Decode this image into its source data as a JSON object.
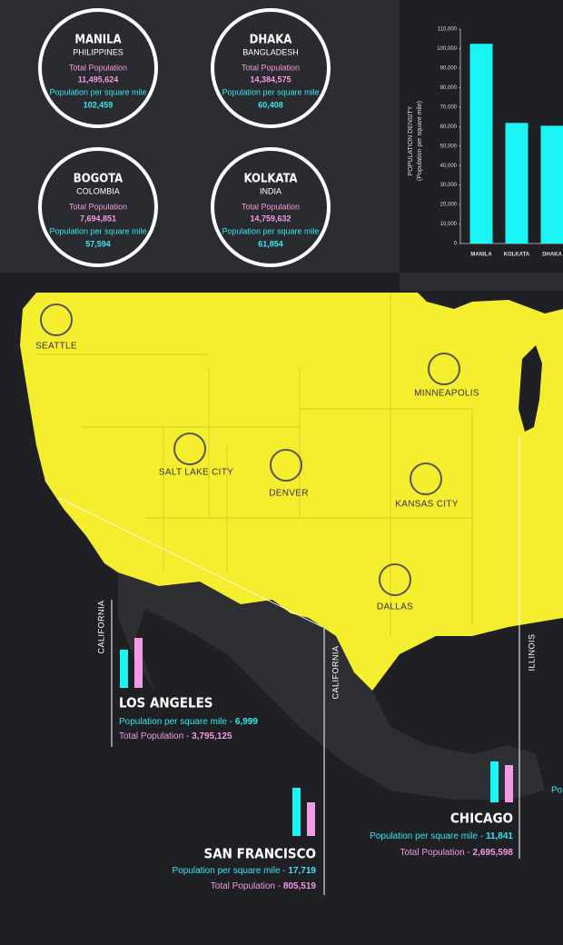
{
  "circles": [
    {
      "city": "MANILA",
      "country": "PHILIPPINES",
      "pop_label": "Total Population",
      "pop": "11,495,624",
      "density_label": "Population per square mile",
      "density": "102,459"
    },
    {
      "city": "DHAKA",
      "country": "BANGLADESH",
      "pop_label": "Total Population",
      "pop": "14,384,575",
      "density_label": "Population per square mile",
      "density": "60,408"
    },
    {
      "city": "BOGOTA",
      "country": "COLOMBIA",
      "pop_label": "Total Population",
      "pop": "7,694,851",
      "density_label": "Population per square mile",
      "density": "57,594"
    },
    {
      "city": "KOLKATA",
      "country": "INDIA",
      "pop_label": "Total Population",
      "pop": "14,759,632",
      "density_label": "Population per square mile",
      "density": "61,854"
    }
  ],
  "chart_data": {
    "type": "bar",
    "y_label": "POPULATION DENSITY",
    "y_sublabel": "(Population per square mile)",
    "categories": [
      "MANILA",
      "KOLKATA",
      "DHAKA"
    ],
    "values": [
      102459,
      61854,
      60408
    ],
    "color": "#19f5f5",
    "ylim": [
      0,
      110000
    ],
    "yticks": [
      0,
      {
        "value": 10000,
        "label": "10,000"
      },
      {
        "value": 20000,
        "label": "20,000"
      },
      {
        "value": 30000,
        "label": "30,000"
      },
      {
        "value": 40000,
        "label": "40,000"
      },
      {
        "value": 50000,
        "label": "50,000"
      },
      {
        "value": 60000,
        "label": "60,000"
      },
      {
        "value": 70000,
        "label": "70,000"
      },
      {
        "value": 80000,
        "label": "80,000"
      },
      {
        "value": 90000,
        "label": "90,000"
      },
      {
        "value": 100000,
        "label": "100,000"
      },
      {
        "value": 110000,
        "label": "110,000"
      }
    ]
  },
  "map_labels": [
    "SEATTLE",
    "MINNEAPOLIS",
    "SALT LAKE CITY",
    "DENVER",
    "KANSAS CITY",
    "DALLAS"
  ],
  "callouts": [
    {
      "state": "CALIFORNIA",
      "city": "LOS ANGELES",
      "density_label": "Population per square mile - ",
      "density": "6,999",
      "pop_label": "Total Population - ",
      "pop": "3,795,125"
    },
    {
      "state": "CALIFORNIA",
      "city": "SAN FRANCISCO",
      "density_label": "Population per square mile - ",
      "density": "17,719",
      "pop_label": "Total Population - ",
      "pop": "805,519"
    },
    {
      "state": "ILLINOIS",
      "city": "CHICAGO",
      "density_label": "Population per square mile - ",
      "density": "11,841",
      "pop_label": "Total Population - ",
      "pop": "2,695,598"
    }
  ],
  "partial_text": "Po"
}
